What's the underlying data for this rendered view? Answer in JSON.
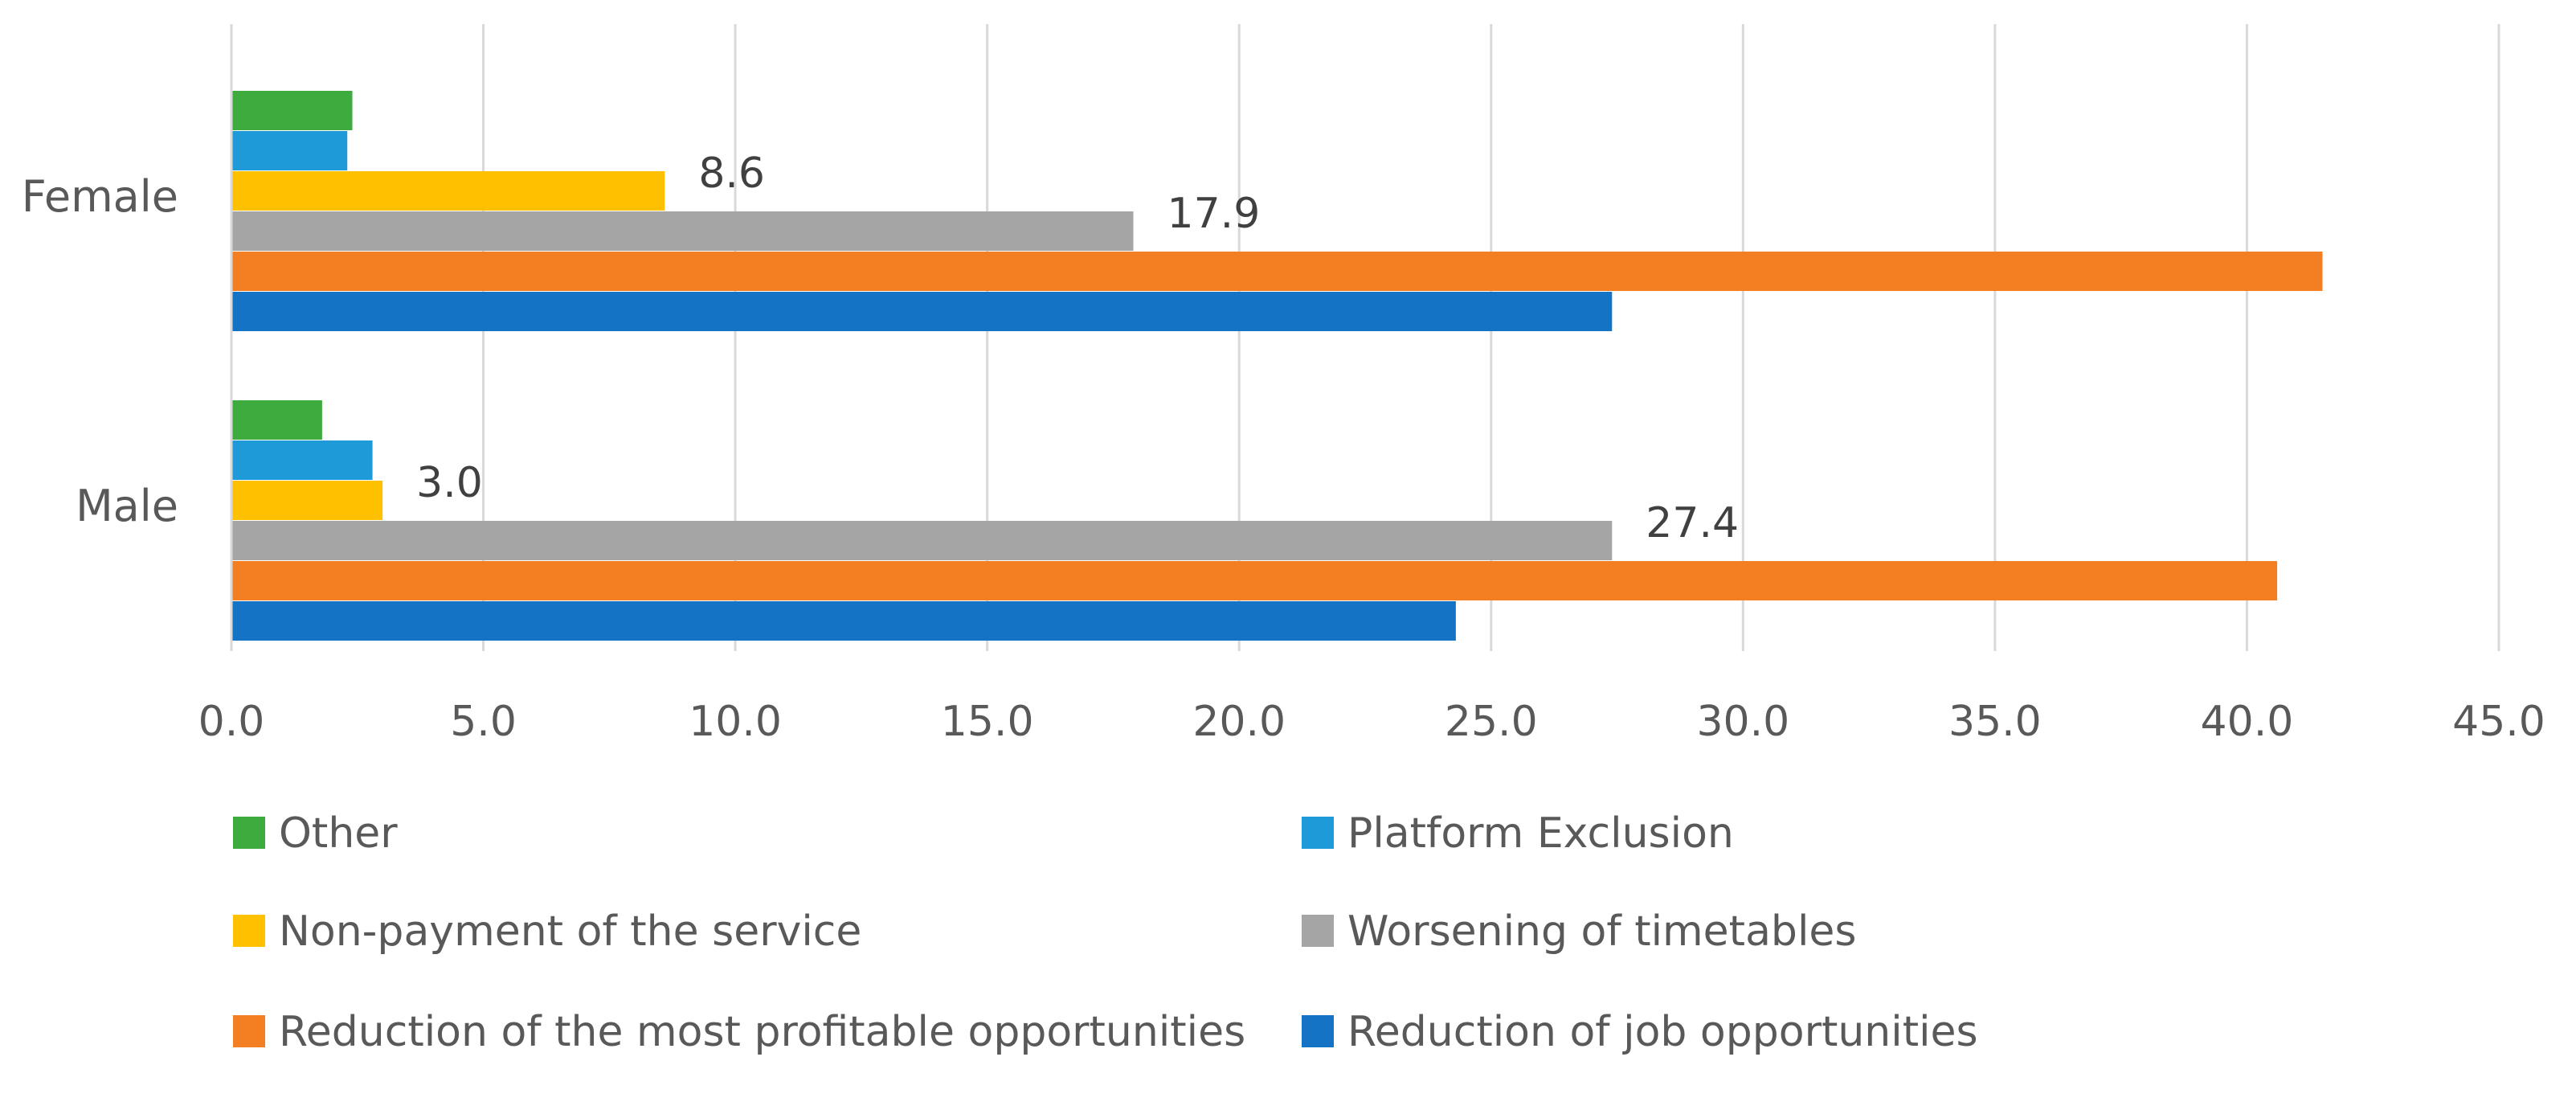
{
  "chart_data": {
    "type": "bar",
    "orientation": "horizontal",
    "title": "",
    "xlabel": "",
    "ylabel": "",
    "categories": [
      "Female",
      "Male"
    ],
    "xlim": [
      0,
      45
    ],
    "xticks": [
      0,
      5,
      10,
      15,
      20,
      25,
      30,
      35,
      40,
      45
    ],
    "xtick_labels": [
      "0.0",
      "5.0",
      "10.0",
      "15.0",
      "20.0",
      "25.0",
      "30.0",
      "35.0",
      "40.0",
      "45.0"
    ],
    "grid": true,
    "legend_position": "bottom",
    "series": [
      {
        "name": "Other",
        "color": "#3EAB3E",
        "values": [
          2.4,
          1.8
        ],
        "labels": [
          "",
          ""
        ]
      },
      {
        "name": "Platform Exclusion",
        "color": "#1E9AD9",
        "values": [
          2.3,
          2.8
        ],
        "labels": [
          "",
          ""
        ]
      },
      {
        "name": "Non-payment of the service",
        "color": "#FFC000",
        "values": [
          8.6,
          3.0
        ],
        "labels": [
          "8.6",
          "3.0"
        ]
      },
      {
        "name": "Worsening of timetables",
        "color": "#A5A5A5",
        "values": [
          17.9,
          27.4
        ],
        "labels": [
          "17.9",
          "27.4"
        ]
      },
      {
        "name": "Reduction of the most profitable opportunities",
        "color": "#F47F22",
        "values": [
          41.5,
          40.6
        ],
        "labels": [
          "",
          ""
        ]
      },
      {
        "name": "Reduction of job opportunities",
        "color": "#1573C6",
        "values": [
          27.4,
          24.3
        ],
        "labels": [
          "",
          ""
        ]
      }
    ]
  }
}
